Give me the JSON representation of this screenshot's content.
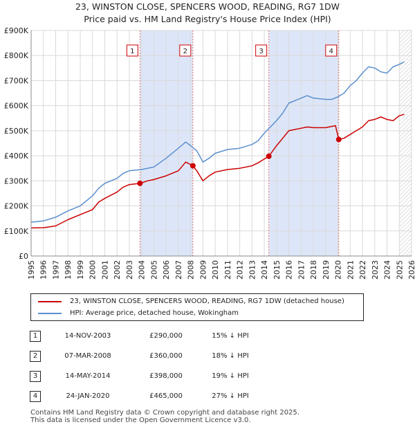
{
  "title": {
    "line1": "23, WINSTON CLOSE, SPENCERS WOOD, READING, RG7 1DW",
    "line2": "Price paid vs. HM Land Registry's House Price Index (HPI)"
  },
  "colors": {
    "property": "#cc0000",
    "hpi": "#5b8fcf",
    "band": "#dde6f8",
    "grid": "#d9d9d9",
    "marker_line": "#e07070"
  },
  "chart_data": {
    "type": "line",
    "x_range": [
      1995,
      2026
    ],
    "ylim": [
      0,
      900000
    ],
    "y_ticks": [
      {
        "value": 0,
        "label": "£0"
      },
      {
        "value": 100000,
        "label": "£100K"
      },
      {
        "value": 200000,
        "label": "£200K"
      },
      {
        "value": 300000,
        "label": "£300K"
      },
      {
        "value": 400000,
        "label": "£400K"
      },
      {
        "value": 500000,
        "label": "£500K"
      },
      {
        "value": 600000,
        "label": "£600K"
      },
      {
        "value": 700000,
        "label": "£700K"
      },
      {
        "value": 800000,
        "label": "£800K"
      },
      {
        "value": 900000,
        "label": "£900K"
      }
    ],
    "x_ticks": [
      "1995",
      "1996",
      "1997",
      "1998",
      "1999",
      "2000",
      "2001",
      "2002",
      "2003",
      "2004",
      "2005",
      "2006",
      "2007",
      "2008",
      "2009",
      "2010",
      "2011",
      "2012",
      "2013",
      "2014",
      "2015",
      "2016",
      "2017",
      "2018",
      "2019",
      "2020",
      "2021",
      "2022",
      "2023",
      "2024",
      "2025",
      "2026"
    ],
    "forecast_start": 2025.0,
    "series": [
      {
        "name": "23, WINSTON CLOSE, SPENCERS WOOD, READING, RG7 1DW (detached house)",
        "color": "#cc0000",
        "points": [
          [
            1995.0,
            112000
          ],
          [
            1996.0,
            113000
          ],
          [
            1997.0,
            120000
          ],
          [
            1998.0,
            145000
          ],
          [
            1999.0,
            165000
          ],
          [
            2000.0,
            185000
          ],
          [
            2000.5,
            215000
          ],
          [
            2001.0,
            230000
          ],
          [
            2002.0,
            255000
          ],
          [
            2002.5,
            275000
          ],
          [
            2003.0,
            285000
          ],
          [
            2003.88,
            290000
          ],
          [
            2004.5,
            300000
          ],
          [
            2005.0,
            305000
          ],
          [
            2006.0,
            320000
          ],
          [
            2007.0,
            340000
          ],
          [
            2007.6,
            375000
          ],
          [
            2008.18,
            360000
          ],
          [
            2008.5,
            340000
          ],
          [
            2009.0,
            300000
          ],
          [
            2009.5,
            320000
          ],
          [
            2010.0,
            335000
          ],
          [
            2011.0,
            345000
          ],
          [
            2012.0,
            350000
          ],
          [
            2013.0,
            360000
          ],
          [
            2013.5,
            372000
          ],
          [
            2014.37,
            398000
          ],
          [
            2015.0,
            440000
          ],
          [
            2015.5,
            470000
          ],
          [
            2016.0,
            500000
          ],
          [
            2017.0,
            510000
          ],
          [
            2017.5,
            515000
          ],
          [
            2018.0,
            512000
          ],
          [
            2019.0,
            512000
          ],
          [
            2019.8,
            520000
          ],
          [
            2020.07,
            465000
          ],
          [
            2020.5,
            470000
          ],
          [
            2021.0,
            485000
          ],
          [
            2021.5,
            500000
          ],
          [
            2022.0,
            515000
          ],
          [
            2022.5,
            540000
          ],
          [
            2023.0,
            545000
          ],
          [
            2023.5,
            555000
          ],
          [
            2024.0,
            545000
          ],
          [
            2024.5,
            540000
          ],
          [
            2025.0,
            560000
          ],
          [
            2025.4,
            565000
          ]
        ]
      },
      {
        "name": "HPI: Average price, detached house, Wokingham",
        "color": "#5b8fcf",
        "points": [
          [
            1995.0,
            135000
          ],
          [
            1996.0,
            140000
          ],
          [
            1997.0,
            155000
          ],
          [
            1998.0,
            180000
          ],
          [
            1999.0,
            200000
          ],
          [
            2000.0,
            240000
          ],
          [
            2000.5,
            270000
          ],
          [
            2001.0,
            290000
          ],
          [
            2002.0,
            310000
          ],
          [
            2002.5,
            330000
          ],
          [
            2003.0,
            340000
          ],
          [
            2004.0,
            345000
          ],
          [
            2005.0,
            355000
          ],
          [
            2006.0,
            390000
          ],
          [
            2007.0,
            430000
          ],
          [
            2007.6,
            455000
          ],
          [
            2008.0,
            440000
          ],
          [
            2008.5,
            420000
          ],
          [
            2009.0,
            375000
          ],
          [
            2009.5,
            390000
          ],
          [
            2010.0,
            410000
          ],
          [
            2011.0,
            425000
          ],
          [
            2012.0,
            430000
          ],
          [
            2013.0,
            445000
          ],
          [
            2013.5,
            460000
          ],
          [
            2014.0,
            490000
          ],
          [
            2015.0,
            540000
          ],
          [
            2015.5,
            570000
          ],
          [
            2016.0,
            610000
          ],
          [
            2017.0,
            630000
          ],
          [
            2017.5,
            640000
          ],
          [
            2018.0,
            630000
          ],
          [
            2019.0,
            625000
          ],
          [
            2019.5,
            625000
          ],
          [
            2020.0,
            635000
          ],
          [
            2020.5,
            650000
          ],
          [
            2021.0,
            680000
          ],
          [
            2021.5,
            700000
          ],
          [
            2022.0,
            730000
          ],
          [
            2022.5,
            755000
          ],
          [
            2023.0,
            750000
          ],
          [
            2023.5,
            735000
          ],
          [
            2024.0,
            730000
          ],
          [
            2024.5,
            755000
          ],
          [
            2025.0,
            765000
          ],
          [
            2025.4,
            775000
          ]
        ]
      }
    ],
    "sales": [
      {
        "label": "1",
        "date": "14-NOV-2003",
        "year": 2003.87,
        "price": "£290,000",
        "value": 290000,
        "hpi": "15% ↓ HPI"
      },
      {
        "label": "2",
        "date": "07-MAR-2008",
        "year": 2008.18,
        "price": "£360,000",
        "value": 360000,
        "hpi": "18% ↓ HPI"
      },
      {
        "label": "3",
        "date": "14-MAY-2014",
        "year": 2014.37,
        "price": "£398,000",
        "value": 398000,
        "hpi": "19% ↓ HPI"
      },
      {
        "label": "4",
        "date": "24-JAN-2020",
        "year": 2020.07,
        "price": "£465,000",
        "value": 465000,
        "hpi": "27% ↓ HPI"
      }
    ],
    "shaded_bands": [
      [
        2003.87,
        2008.18
      ],
      [
        2014.37,
        2020.07
      ]
    ]
  },
  "legend": {
    "property": "23, WINSTON CLOSE, SPENCERS WOOD, READING, RG7 1DW (detached house)",
    "hpi": "HPI: Average price, detached house, Wokingham"
  },
  "footer": {
    "line1": "Contains HM Land Registry data © Crown copyright and database right 2025.",
    "line2": "This data is licensed under the Open Government Licence v3.0."
  }
}
